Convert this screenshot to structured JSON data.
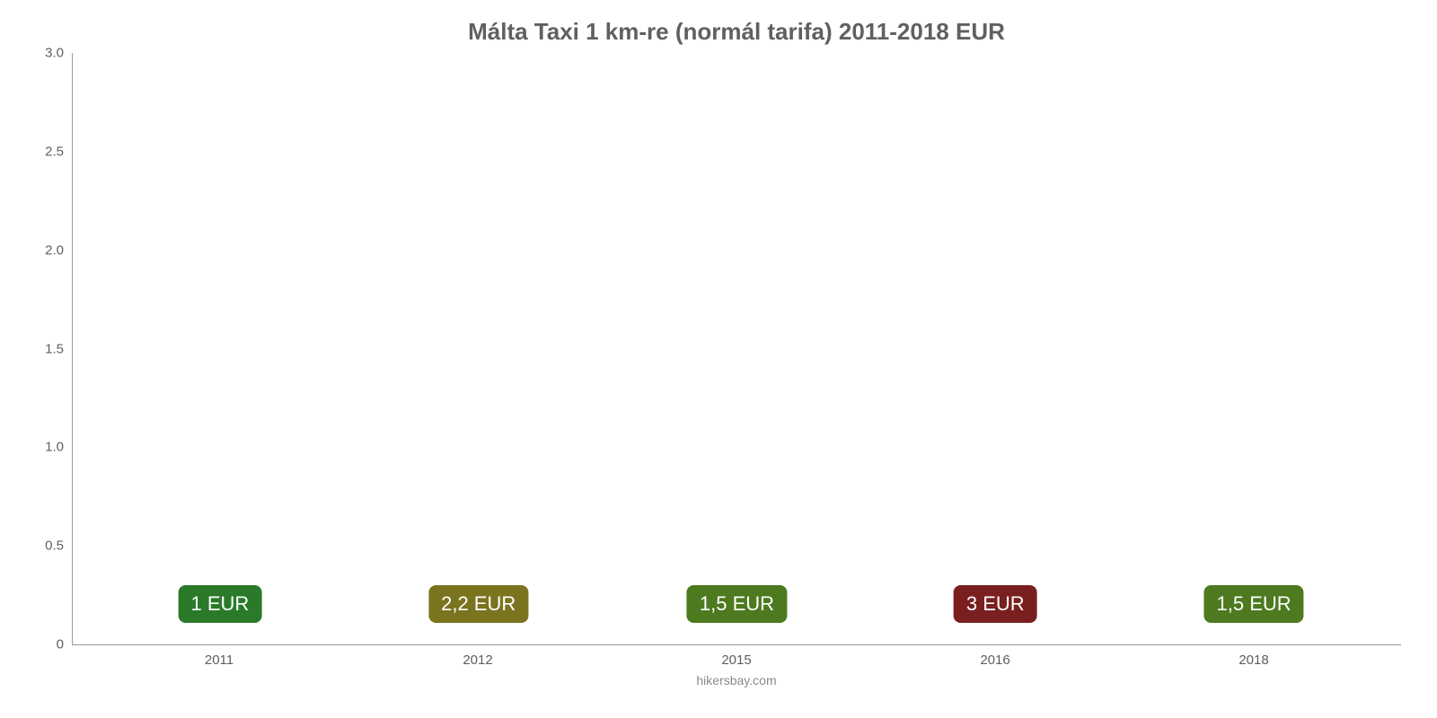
{
  "chart": {
    "type": "bar",
    "title": "Málta Taxi 1 km-re (normál tarifa) 2011-2018 EUR",
    "title_fontsize": 26,
    "title_color": "#606060",
    "attribution": "hikersbay.com",
    "attribution_fontsize": 14,
    "attribution_color": "#8a8a8a",
    "background_color": "#ffffff",
    "ylim": [
      0,
      3.0
    ],
    "yticks": [
      0,
      0.5,
      1.0,
      1.5,
      2.0,
      2.5,
      3.0
    ],
    "ytick_labels": [
      "0",
      "0.5",
      "1.0",
      "1.5",
      "2.0",
      "2.5",
      "3.0"
    ],
    "ytick_fontsize": 15,
    "ytick_color": "#5f5f5f",
    "xtick_fontsize": 15,
    "xtick_color": "#5f5f5f",
    "axis_color": "#999999",
    "bar_width_pct": 72,
    "bar_label_fontsize": 22,
    "bar_label_text_color": "#ffffff",
    "categories": [
      "2011",
      "2012",
      "2015",
      "2016",
      "2018"
    ],
    "values": [
      1.0,
      2.2,
      1.5,
      3.0,
      1.5
    ],
    "value_labels": [
      "1 EUR",
      "2,2 EUR",
      "1,5 EUR",
      "3 EUR",
      "1,5 EUR"
    ],
    "bar_colors": [
      "#2ecc40",
      "#d6cf2e",
      "#8bce2e",
      "#e23b35",
      "#8bce2e"
    ],
    "label_bg_colors": [
      "#2a7a2a",
      "#7a741f",
      "#4d7a1f",
      "#7a1f1f",
      "#4d7a1f"
    ]
  }
}
